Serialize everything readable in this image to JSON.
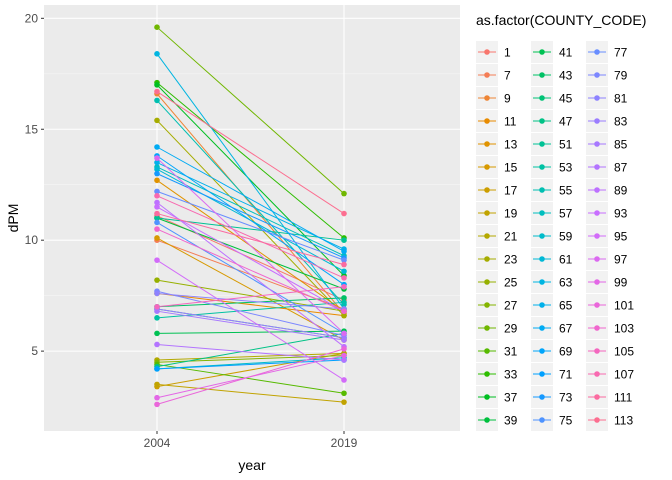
{
  "chart_data": {
    "type": "line",
    "x": [
      "2004",
      "2019"
    ],
    "xlabel": "year",
    "ylabel": "dPM",
    "ylim": [
      1.4,
      20.6
    ],
    "yticks": [
      5,
      10,
      15,
      20
    ],
    "grid": true,
    "legend": {
      "title": "as.factor(COUNTY_CODE)",
      "position": "right"
    },
    "series": [
      {
        "name": "1",
        "color": "#F8766D",
        "values": [
          11.1,
          7.3
        ]
      },
      {
        "name": "7",
        "color": "#F47D55",
        "values": [
          10.0,
          6.9
        ]
      },
      {
        "name": "9",
        "color": "#EE8535",
        "values": [
          16.6,
          6.7
        ]
      },
      {
        "name": "11",
        "color": "#E88B00",
        "values": [
          7.6,
          6.6
        ]
      },
      {
        "name": "13",
        "color": "#E09300",
        "values": [
          12.7,
          6.8
        ]
      },
      {
        "name": "15",
        "color": "#D79900",
        "values": [
          10.1,
          5.5
        ]
      },
      {
        "name": "17",
        "color": "#CC9E00",
        "values": [
          3.4,
          4.9
        ]
      },
      {
        "name": "19",
        "color": "#C1A300",
        "values": [
          3.5,
          2.7
        ]
      },
      {
        "name": "21",
        "color": "#B4A800",
        "values": [
          4.6,
          4.9
        ]
      },
      {
        "name": "23",
        "color": "#A6AC00",
        "values": [
          15.4,
          6.6
        ]
      },
      {
        "name": "25",
        "color": "#96B000",
        "values": [
          8.2,
          6.8
        ]
      },
      {
        "name": "27",
        "color": "#84B400",
        "values": [
          4.5,
          4.8
        ]
      },
      {
        "name": "29",
        "color": "#70B700",
        "values": [
          19.6,
          12.1
        ]
      },
      {
        "name": "31",
        "color": "#57BA00",
        "values": [
          4.4,
          3.1
        ]
      },
      {
        "name": "33",
        "color": "#2DBD00",
        "values": [
          17.1,
          10.1
        ]
      },
      {
        "name": "37",
        "color": "#00BF21",
        "values": [
          17.0,
          8.4
        ]
      },
      {
        "name": "39",
        "color": "#00C03E",
        "values": [
          11.0,
          7.8
        ]
      },
      {
        "name": "41",
        "color": "#00C153",
        "values": [
          5.8,
          5.9
        ]
      },
      {
        "name": "43",
        "color": "#00C165",
        "values": [
          7.0,
          7.4
        ]
      },
      {
        "name": "45",
        "color": "#00C276",
        "values": [
          6.9,
          5.6
        ]
      },
      {
        "name": "47",
        "color": "#00C286",
        "values": [
          4.3,
          5.8
        ]
      },
      {
        "name": "51",
        "color": "#00C195",
        "values": [
          11.0,
          10.0
        ]
      },
      {
        "name": "53",
        "color": "#00C1A3",
        "values": [
          6.5,
          7.2
        ]
      },
      {
        "name": "55",
        "color": "#00BFB1",
        "values": [
          16.3,
          7.1
        ]
      },
      {
        "name": "57",
        "color": "#00BEBE",
        "values": [
          13.3,
          9.3
        ]
      },
      {
        "name": "59",
        "color": "#00BBCA",
        "values": [
          4.2,
          4.7
        ]
      },
      {
        "name": "61",
        "color": "#00B8D6",
        "values": [
          13.2,
          8.6
        ]
      },
      {
        "name": "63",
        "color": "#00B5E1",
        "values": [
          18.4,
          6.9
        ]
      },
      {
        "name": "65",
        "color": "#00B0EA",
        "values": [
          13.5,
          9.6
        ]
      },
      {
        "name": "67",
        "color": "#00ABF3",
        "values": [
          14.2,
          9.5
        ]
      },
      {
        "name": "69",
        "color": "#00A5FB",
        "values": [
          13.8,
          8.0
        ]
      },
      {
        "name": "71",
        "color": "#00A0FF",
        "values": [
          4.2,
          4.6
        ]
      },
      {
        "name": "73",
        "color": "#1699FF",
        "values": [
          13.0,
          9.2
        ]
      },
      {
        "name": "75",
        "color": "#4E93FF",
        "values": [
          10.8,
          5.8
        ]
      },
      {
        "name": "77",
        "color": "#688DFF",
        "values": [
          12.2,
          9.1
        ]
      },
      {
        "name": "79",
        "color": "#7C87FF",
        "values": [
          7.7,
          5.7
        ]
      },
      {
        "name": "81",
        "color": "#8D82FF",
        "values": [
          7.6,
          6.9
        ]
      },
      {
        "name": "83",
        "color": "#9B7DFF",
        "values": [
          6.9,
          5.6
        ]
      },
      {
        "name": "85",
        "color": "#A778FF",
        "values": [
          6.8,
          5.5
        ]
      },
      {
        "name": "87",
        "color": "#B374FF",
        "values": [
          5.3,
          4.6
        ]
      },
      {
        "name": "89",
        "color": "#BD71FF",
        "values": [
          11.7,
          5.2
        ]
      },
      {
        "name": "93",
        "color": "#C86EFF",
        "values": [
          11.5,
          6.8
        ]
      },
      {
        "name": "95",
        "color": "#D26CF9",
        "values": [
          9.1,
          3.7
        ]
      },
      {
        "name": "97",
        "color": "#DB69F0",
        "values": [
          13.7,
          5.8
        ]
      },
      {
        "name": "99",
        "color": "#E367E6",
        "values": [
          2.9,
          4.8
        ]
      },
      {
        "name": "101",
        "color": "#EA66DA",
        "values": [
          2.6,
          5.1
        ]
      },
      {
        "name": "103",
        "color": "#F066CD",
        "values": [
          10.5,
          6.8
        ]
      },
      {
        "name": "105",
        "color": "#F467BF",
        "values": [
          7.0,
          7.9
        ]
      },
      {
        "name": "107",
        "color": "#F869B0",
        "values": [
          12.0,
          8.3
        ]
      },
      {
        "name": "111",
        "color": "#FB6BA0",
        "values": [
          11.2,
          8.9
        ]
      },
      {
        "name": "113",
        "color": "#FC6E90",
        "values": [
          16.7,
          11.2
        ]
      }
    ]
  }
}
